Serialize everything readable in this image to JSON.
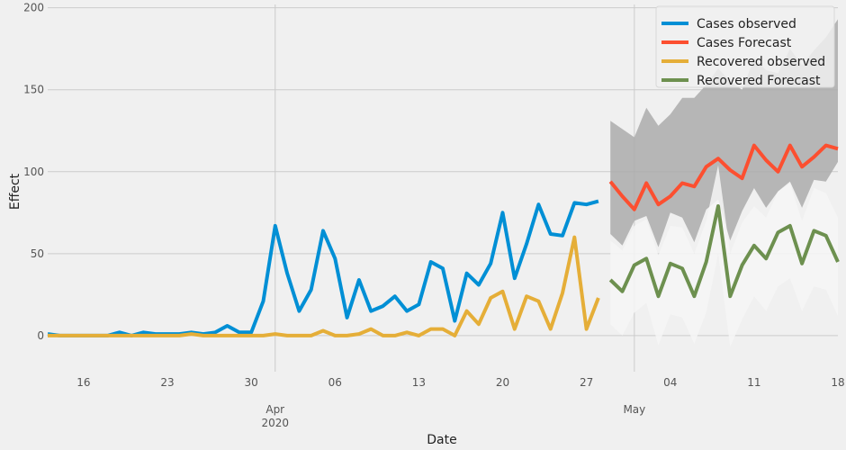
{
  "chart_data": {
    "type": "line",
    "xlabel": "Date",
    "ylabel": "Effect",
    "ylim": [
      -22,
      202
    ],
    "xlim": [
      "2020-03-13",
      "2020-05-18"
    ],
    "grid": true,
    "legend": "top-right",
    "background": "#f0f0f0",
    "grid_color": "#cbcbcb",
    "y_ticks": [
      0,
      50,
      100,
      150,
      200
    ],
    "y_tick_labels": [
      "0",
      "50",
      "100",
      "150",
      "200"
    ],
    "minor_ticks": [
      {
        "date": "2020-03-16",
        "label": "16"
      },
      {
        "date": "2020-03-23",
        "label": "23"
      },
      {
        "date": "2020-03-30",
        "label": "30"
      },
      {
        "date": "2020-04-06",
        "label": "06"
      },
      {
        "date": "2020-04-13",
        "label": "13"
      },
      {
        "date": "2020-04-20",
        "label": "20"
      },
      {
        "date": "2020-04-27",
        "label": "27"
      },
      {
        "date": "2020-05-04",
        "label": "04"
      },
      {
        "date": "2020-05-11",
        "label": "11"
      },
      {
        "date": "2020-05-18",
        "label": "18"
      }
    ],
    "major_ticks": [
      {
        "date": "2020-04-01",
        "label": "Apr",
        "sublabel": "2020"
      },
      {
        "date": "2020-05-01",
        "label": "May",
        "sublabel": ""
      }
    ],
    "series": [
      {
        "name": "Cases observed",
        "color": "#008fd5",
        "start": "2020-03-13",
        "values": [
          1,
          0,
          0,
          0,
          0,
          0,
          2,
          0,
          2,
          1,
          1,
          1,
          2,
          1,
          2,
          6,
          2,
          2,
          21,
          67,
          38,
          15,
          28,
          64,
          47,
          11,
          34,
          15,
          18,
          24,
          15,
          19,
          45,
          41,
          9,
          38,
          31,
          44,
          75,
          35,
          56,
          80,
          62,
          61,
          81,
          80,
          82
        ]
      },
      {
        "name": "Cases Forecast",
        "color": "#fc4f30",
        "start": "2020-04-29",
        "values": [
          94,
          85,
          77,
          93,
          80,
          85,
          93,
          91,
          103,
          108,
          101,
          96,
          116,
          107,
          100,
          116,
          103,
          109,
          116,
          114
        ]
      },
      {
        "name": "Recovered observed",
        "color": "#e5ae38",
        "start": "2020-03-13",
        "values": [
          0,
          0,
          0,
          0,
          0,
          0,
          0,
          0,
          0,
          0,
          0,
          0,
          1,
          0,
          0,
          0,
          0,
          0,
          0,
          1,
          0,
          0,
          0,
          3,
          0,
          0,
          1,
          4,
          0,
          0,
          2,
          0,
          4,
          4,
          0,
          15,
          7,
          23,
          27,
          4,
          24,
          21,
          4,
          26,
          60,
          4,
          23
        ]
      },
      {
        "name": "Recovered Forecast",
        "color": "#6d904f",
        "start": "2020-04-29",
        "values": [
          34,
          27,
          43,
          47,
          24,
          44,
          41,
          24,
          45,
          79,
          24,
          43,
          55,
          47,
          63,
          67,
          44,
          64,
          61,
          45
        ]
      }
    ],
    "bands": [
      {
        "series": "Cases Forecast",
        "color": "#acacac",
        "start": "2020-04-29",
        "upper": [
          131,
          126,
          121,
          139,
          128,
          135,
          145,
          145,
          153,
          163,
          155,
          150,
          169,
          162,
          160,
          175,
          165,
          174,
          182,
          193
        ],
        "lower": [
          62,
          55,
          70,
          73,
          54,
          75,
          72,
          57,
          77,
          83,
          58,
          76,
          90,
          78,
          88,
          94,
          78,
          95,
          94,
          106
        ]
      },
      {
        "series": "Recovered Forecast",
        "color": "#f6f6f6",
        "start": "2020-04-29",
        "upper": [
          58,
          52,
          67,
          71,
          49,
          67,
          66,
          50,
          70,
          104,
          50,
          69,
          79,
          72,
          88,
          93,
          70,
          90,
          87,
          72
        ],
        "lower": [
          7,
          0,
          14,
          20,
          -6,
          13,
          11,
          -5,
          14,
          50,
          -7,
          10,
          24,
          15,
          30,
          35,
          15,
          30,
          28,
          12
        ]
      }
    ]
  }
}
